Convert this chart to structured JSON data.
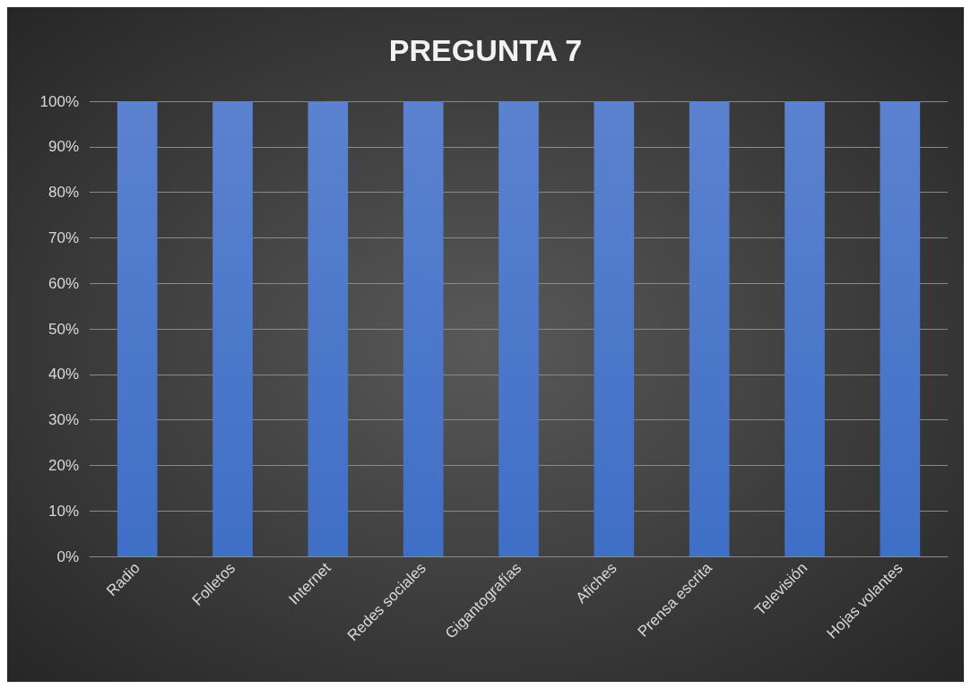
{
  "chart_data": {
    "type": "bar",
    "title": "PREGUNTA 7",
    "categories": [
      "Radio",
      "Folletos",
      "Internet",
      "Redes sociales",
      "Gigantografías",
      "Afiches",
      "Prensa escrita",
      "Televisión",
      "Hojas volantes"
    ],
    "values": [
      100,
      100,
      100,
      100,
      100,
      100,
      100,
      100,
      100
    ],
    "color": "#3f6fc6",
    "ylim": [
      0,
      100
    ],
    "yticks": [
      {
        "value": 0,
        "label": "0%"
      },
      {
        "value": 10,
        "label": "10%"
      },
      {
        "value": 20,
        "label": "20%"
      },
      {
        "value": 30,
        "label": "30%"
      },
      {
        "value": 40,
        "label": "40%"
      },
      {
        "value": 50,
        "label": "50%"
      },
      {
        "value": 60,
        "label": "60%"
      },
      {
        "value": 70,
        "label": "70%"
      },
      {
        "value": 80,
        "label": "80%"
      },
      {
        "value": 90,
        "label": "90%"
      },
      {
        "value": 100,
        "label": "100%"
      }
    ],
    "grid": "y"
  }
}
